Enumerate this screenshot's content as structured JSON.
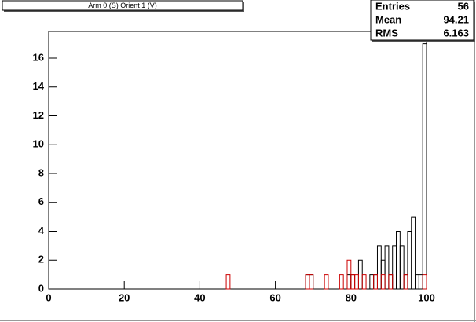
{
  "chart_data": {
    "type": "histogram",
    "title": "Arm 0 (S) Orient 1 (V)",
    "bins": [
      0,
      1,
      2,
      3,
      4,
      5,
      6,
      7,
      8,
      9,
      10,
      11,
      12,
      13,
      14,
      15,
      16,
      17,
      18,
      19,
      20,
      21,
      22,
      23,
      24,
      25,
      26,
      27,
      28,
      29,
      30,
      31,
      32,
      33,
      34,
      35,
      36,
      37,
      38,
      39,
      40,
      41,
      42,
      43,
      44,
      45,
      46,
      47,
      48,
      49,
      50,
      51,
      52,
      53,
      54,
      55,
      56,
      57,
      58,
      59,
      60,
      61,
      62,
      63,
      64,
      65,
      66,
      67,
      68,
      69,
      70,
      71,
      72,
      73,
      74,
      75,
      76,
      77,
      78,
      79,
      80,
      81,
      82,
      83,
      84,
      85,
      86,
      87,
      88,
      89,
      90,
      91,
      92,
      93,
      94,
      95,
      96,
      97,
      98,
      99,
      100
    ],
    "series": [
      {
        "color": "#000000",
        "values": [
          0,
          0,
          0,
          0,
          0,
          0,
          0,
          0,
          0,
          0,
          0,
          0,
          0,
          0,
          0,
          0,
          0,
          0,
          0,
          0,
          0,
          0,
          0,
          0,
          0,
          0,
          0,
          0,
          0,
          0,
          0,
          0,
          0,
          0,
          0,
          0,
          0,
          0,
          0,
          0,
          0,
          0,
          0,
          0,
          0,
          0,
          0,
          0,
          0,
          0,
          0,
          0,
          0,
          0,
          0,
          0,
          0,
          0,
          0,
          0,
          0,
          0,
          0,
          0,
          0,
          0,
          0,
          0,
          1,
          1,
          0,
          0,
          0,
          0,
          0,
          0,
          0,
          0,
          0,
          1,
          1,
          0,
          2,
          0,
          0,
          1,
          1,
          3,
          2,
          3,
          1,
          3,
          4,
          3,
          1,
          4,
          5,
          1,
          1,
          17
        ]
      },
      {
        "color": "#cc0000",
        "values": [
          0,
          0,
          0,
          0,
          0,
          0,
          0,
          0,
          0,
          0,
          0,
          0,
          0,
          0,
          0,
          0,
          0,
          0,
          0,
          0,
          0,
          0,
          0,
          0,
          0,
          0,
          0,
          0,
          0,
          0,
          0,
          0,
          0,
          0,
          0,
          0,
          0,
          0,
          0,
          0,
          0,
          0,
          0,
          0,
          0,
          0,
          0,
          1,
          0,
          0,
          0,
          0,
          0,
          0,
          0,
          0,
          0,
          0,
          0,
          0,
          0,
          0,
          0,
          0,
          0,
          0,
          0,
          0,
          1,
          1,
          0,
          0,
          0,
          1,
          0,
          0,
          0,
          1,
          0,
          2,
          1,
          1,
          0,
          1,
          0,
          0,
          1,
          0,
          1,
          0,
          1,
          0,
          0,
          0,
          1,
          0,
          0,
          0,
          0,
          1
        ]
      }
    ],
    "xlim": [
      0,
      100
    ],
    "xticks": [
      0,
      20,
      40,
      60,
      80,
      100
    ],
    "ylim": [
      0,
      17.85
    ],
    "yticks": [
      0,
      2,
      4,
      6,
      8,
      10,
      12,
      14,
      16
    ],
    "stats": {
      "labels": [
        "Entries",
        "Mean",
        "RMS"
      ],
      "values": [
        56,
        94.21,
        6.163
      ]
    }
  }
}
